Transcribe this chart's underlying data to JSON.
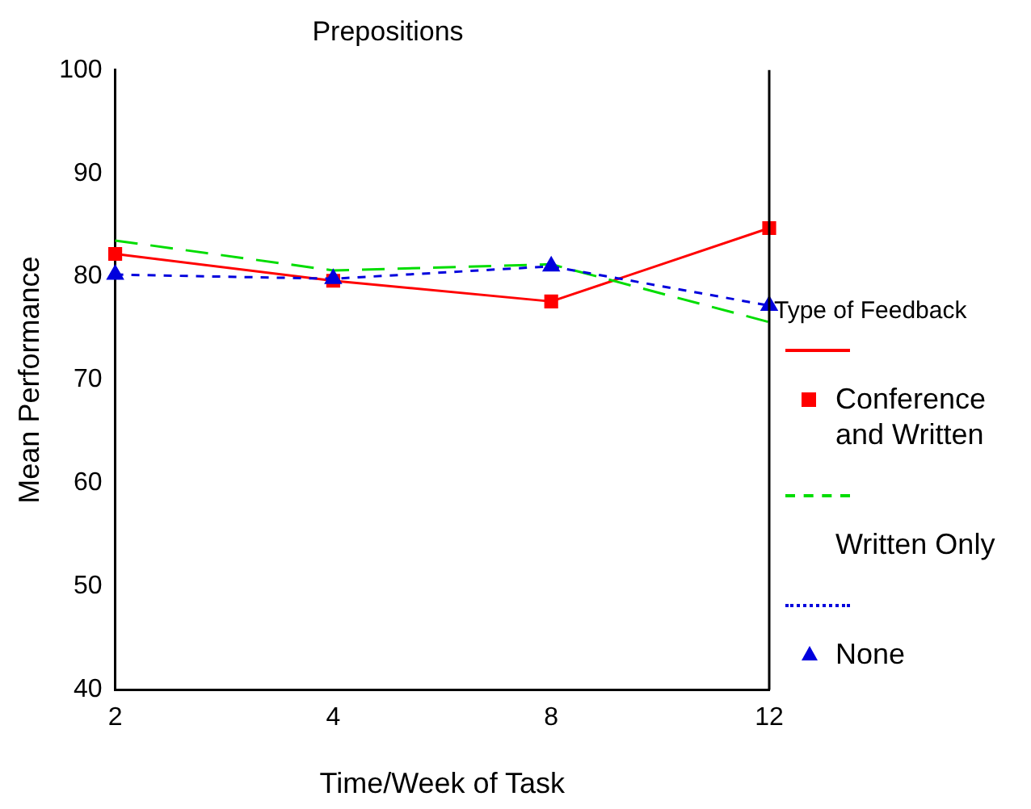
{
  "chart_data": {
    "type": "line",
    "title": "Prepositions",
    "xlabel": "Time/Week of Task",
    "ylabel": "Mean Performance",
    "legend_title": "Type of Feedback",
    "legend": "right",
    "grid": false,
    "categories": [
      "2",
      "4",
      "8",
      "12"
    ],
    "ylim": [
      40,
      100
    ],
    "yticks": [
      40,
      50,
      60,
      70,
      80,
      90,
      100
    ],
    "series": [
      {
        "name": "Conference and Written",
        "color": "#ff0000",
        "line_style": "solid",
        "marker": "square",
        "values": [
          82.2,
          79.6,
          77.6,
          84.7
        ]
      },
      {
        "name": "Written Only",
        "color": "#00dd00",
        "line_style": "dashed",
        "marker": "none",
        "values": [
          83.5,
          80.6,
          81.2,
          75.6
        ]
      },
      {
        "name": "None",
        "color": "#0000dd",
        "line_style": "dotted",
        "marker": "triangle",
        "values": [
          80.2,
          79.8,
          81,
          77.2
        ]
      }
    ]
  }
}
